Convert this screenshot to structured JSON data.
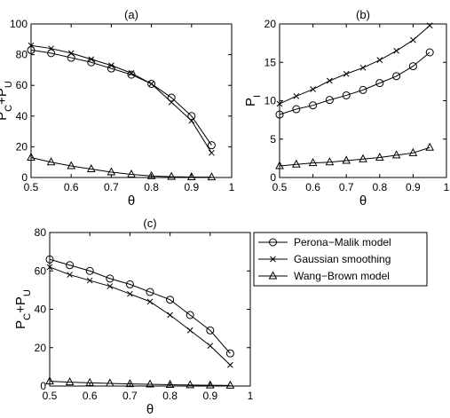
{
  "chart_data": [
    {
      "type": "line",
      "title": "(a)",
      "xlabel": "θ",
      "ylabel": "P",
      "ylabel_sub": [
        "C",
        "U"
      ],
      "ylabel_plus": "+P",
      "xlim": [
        0.5,
        1
      ],
      "ylim": [
        0,
        100
      ],
      "xticks": [
        "0.5",
        "0.6",
        "0.7",
        "0.8",
        "0.9",
        "1"
      ],
      "yticks": [
        "0",
        "20",
        "40",
        "60",
        "80",
        "100"
      ],
      "x": [
        0.5,
        0.55,
        0.6,
        0.65,
        0.7,
        0.75,
        0.8,
        0.85,
        0.9,
        0.95
      ],
      "series": [
        {
          "name": "Perona−Malik model",
          "marker": "circle",
          "values": [
            83,
            81,
            78,
            75,
            71,
            67,
            61,
            52,
            40,
            21
          ]
        },
        {
          "name": "Gaussian smoothing",
          "marker": "x",
          "values": [
            86,
            84,
            81,
            77,
            73,
            68,
            61,
            49,
            37,
            16
          ]
        },
        {
          "name": "Wang−Brown model",
          "marker": "triangle",
          "values": [
            13,
            10,
            7.5,
            5.5,
            3.5,
            2,
            1,
            0.5,
            0.3,
            0.2
          ]
        }
      ]
    },
    {
      "type": "line",
      "title": "(b)",
      "xlabel": "θ",
      "ylabel": "P",
      "ylabel_sub": [
        "I"
      ],
      "xlim": [
        0.5,
        1
      ],
      "ylim": [
        0,
        20
      ],
      "xticks": [
        "0.5",
        "0.6",
        "0.7",
        "0.8",
        "0.9",
        "1"
      ],
      "yticks": [
        "0",
        "5",
        "10",
        "15",
        "20"
      ],
      "x": [
        0.5,
        0.55,
        0.6,
        0.65,
        0.7,
        0.75,
        0.8,
        0.85,
        0.9,
        0.95
      ],
      "series": [
        {
          "name": "Perona−Malik model",
          "marker": "circle",
          "values": [
            8.2,
            8.9,
            9.4,
            10.1,
            10.7,
            11.4,
            12.3,
            13.2,
            14.5,
            16.3
          ]
        },
        {
          "name": "Gaussian smoothing",
          "marker": "x",
          "values": [
            9.6,
            10.6,
            11.5,
            12.6,
            13.5,
            14.3,
            15.3,
            16.5,
            17.9,
            19.8
          ]
        },
        {
          "name": "Wang−Brown model",
          "marker": "triangle",
          "values": [
            1.5,
            1.7,
            1.9,
            2.0,
            2.2,
            2.4,
            2.6,
            2.9,
            3.2,
            3.9
          ]
        }
      ]
    },
    {
      "type": "line",
      "title": "(c)",
      "xlabel": "θ",
      "ylabel": "P",
      "ylabel_sub": [
        "C",
        "U"
      ],
      "ylabel_plus": "+P",
      "xlim": [
        0.5,
        1
      ],
      "ylim": [
        0,
        80
      ],
      "xticks": [
        "0.5",
        "0.6",
        "0.7",
        "0.8",
        "0.9",
        "1"
      ],
      "yticks": [
        "0",
        "20",
        "40",
        "60",
        "80"
      ],
      "x": [
        0.5,
        0.55,
        0.6,
        0.65,
        0.7,
        0.75,
        0.8,
        0.85,
        0.9,
        0.95
      ],
      "series": [
        {
          "name": "Perona−Malik model",
          "marker": "circle",
          "values": [
            66,
            63,
            60,
            56,
            53,
            49,
            45,
            37,
            29,
            17
          ]
        },
        {
          "name": "Gaussian smoothing",
          "marker": "x",
          "values": [
            62,
            58,
            55,
            52,
            48,
            44,
            37,
            29,
            21,
            11
          ]
        },
        {
          "name": "Wang−Brown model",
          "marker": "triangle",
          "values": [
            2.5,
            2,
            1.7,
            1.4,
            1.1,
            0.9,
            0.7,
            0.5,
            0.4,
            0.3
          ]
        }
      ]
    }
  ],
  "legend": {
    "placement": "right-of-panel-c",
    "entries": [
      {
        "label": "Perona−Malik model",
        "marker": "circle"
      },
      {
        "label": "Gaussian smoothing",
        "marker": "x"
      },
      {
        "label": "Wang−Brown model",
        "marker": "triangle"
      }
    ]
  }
}
